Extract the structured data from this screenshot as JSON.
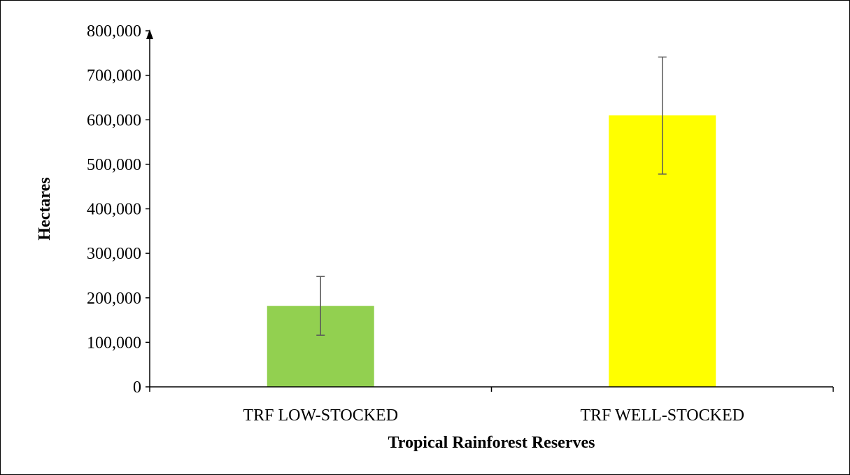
{
  "chart_data": {
    "type": "bar",
    "title": "",
    "xlabel": "Tropical Rainforest Reserves",
    "ylabel": "Hectares",
    "categories": [
      "TRF LOW-STOCKED",
      "TRF WELL-STOCKED"
    ],
    "values": [
      182000,
      610000
    ],
    "error_low": [
      116000,
      478000
    ],
    "error_high": [
      248000,
      741000
    ],
    "colors": [
      "#92d050",
      "#ffff00"
    ],
    "error_bar_color": "#595959",
    "ylim": [
      0,
      800000
    ],
    "yticks": [
      0,
      100000,
      200000,
      300000,
      400000,
      500000,
      600000,
      700000,
      800000
    ],
    "ytick_labels": [
      "0",
      "100,000",
      "200,000",
      "300,000",
      "400,000",
      "500,000",
      "600,000",
      "700,000",
      "800,000"
    ],
    "grid": false,
    "legend": "none"
  }
}
